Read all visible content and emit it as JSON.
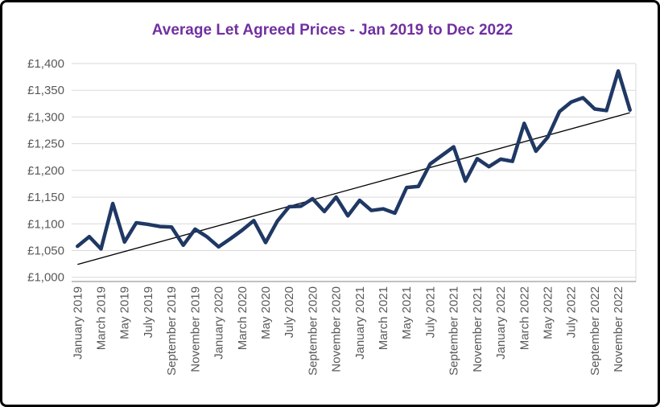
{
  "chart": {
    "background": "#FFFFFF",
    "frame_border_color": "#000000"
  },
  "chart_data": {
    "type": "line",
    "title": "Average Let Agreed Prices - Jan 2019 to Dec 2022",
    "title_color": "#7030A0",
    "x": [
      "January 2019",
      "February 2019",
      "March 2019",
      "April 2019",
      "May 2019",
      "June 2019",
      "July 2019",
      "August 2019",
      "September 2019",
      "October 2019",
      "November 2019",
      "December 2019",
      "January 2020",
      "February 2020",
      "March 2020",
      "April 2020",
      "May 2020",
      "June 2020",
      "July 2020",
      "August 2020",
      "September 2020",
      "October 2020",
      "November 2020",
      "December 2020",
      "January 2021",
      "February 2021",
      "March 2021",
      "April 2021",
      "May 2021",
      "June 2021",
      "July 2021",
      "August 2021",
      "September 2021",
      "October 2021",
      "November 2021",
      "December 2021",
      "January 2022",
      "February 2022",
      "March 2022",
      "April 2022",
      "May 2022",
      "June 2022",
      "July 2022",
      "August 2022",
      "September 2022",
      "October 2022",
      "November 2022",
      "December 2022"
    ],
    "xtick_every": 2,
    "xtick_labels_shown": [
      "January 2019",
      "March 2019",
      "May 2019",
      "July 2019",
      "September 2019",
      "November 2019",
      "January 2020",
      "March 2020",
      "May 2020",
      "July 2020",
      "September 2020",
      "November 2020",
      "January 2021",
      "March 2021",
      "May 2021",
      "July 2021",
      "September 2021",
      "November 2021",
      "January 2022",
      "March 2022",
      "May 2022",
      "July 2022",
      "September 2022",
      "November 2022"
    ],
    "series": [
      {
        "name": "Average Let Agreed Price",
        "color": "#1F3864",
        "stroke_width": 4.5,
        "values": [
          1058,
          1076,
          1053,
          1138,
          1066,
          1102,
          1099,
          1095,
          1094,
          1060,
          1090,
          1076,
          1057,
          1072,
          1088,
          1106,
          1065,
          1105,
          1132,
          1133,
          1147,
          1123,
          1150,
          1115,
          1144,
          1125,
          1128,
          1120,
          1168,
          1170,
          1212,
          1228,
          1244,
          1180,
          1222,
          1207,
          1221,
          1217,
          1288,
          1236,
          1262,
          1310,
          1328,
          1336,
          1315,
          1312,
          1386,
          1313
        ]
      }
    ],
    "trendline": {
      "color": "#000000",
      "stroke_width": 1.3,
      "value_start": 1024,
      "value_end": 1308
    },
    "ylim": [
      1000,
      1400
    ],
    "ytick_step": 50,
    "ytick_labels": [
      "£1,000",
      "£1,050",
      "£1,100",
      "£1,150",
      "£1,200",
      "£1,250",
      "£1,300",
      "£1,350",
      "£1,400"
    ],
    "grid": true,
    "gridline_color": "#D9D9D9",
    "axis_label_color": "#595959",
    "axis_line_color": "#9A9A9A",
    "plot_border_color": "#D9D9D9",
    "legend": "none"
  }
}
